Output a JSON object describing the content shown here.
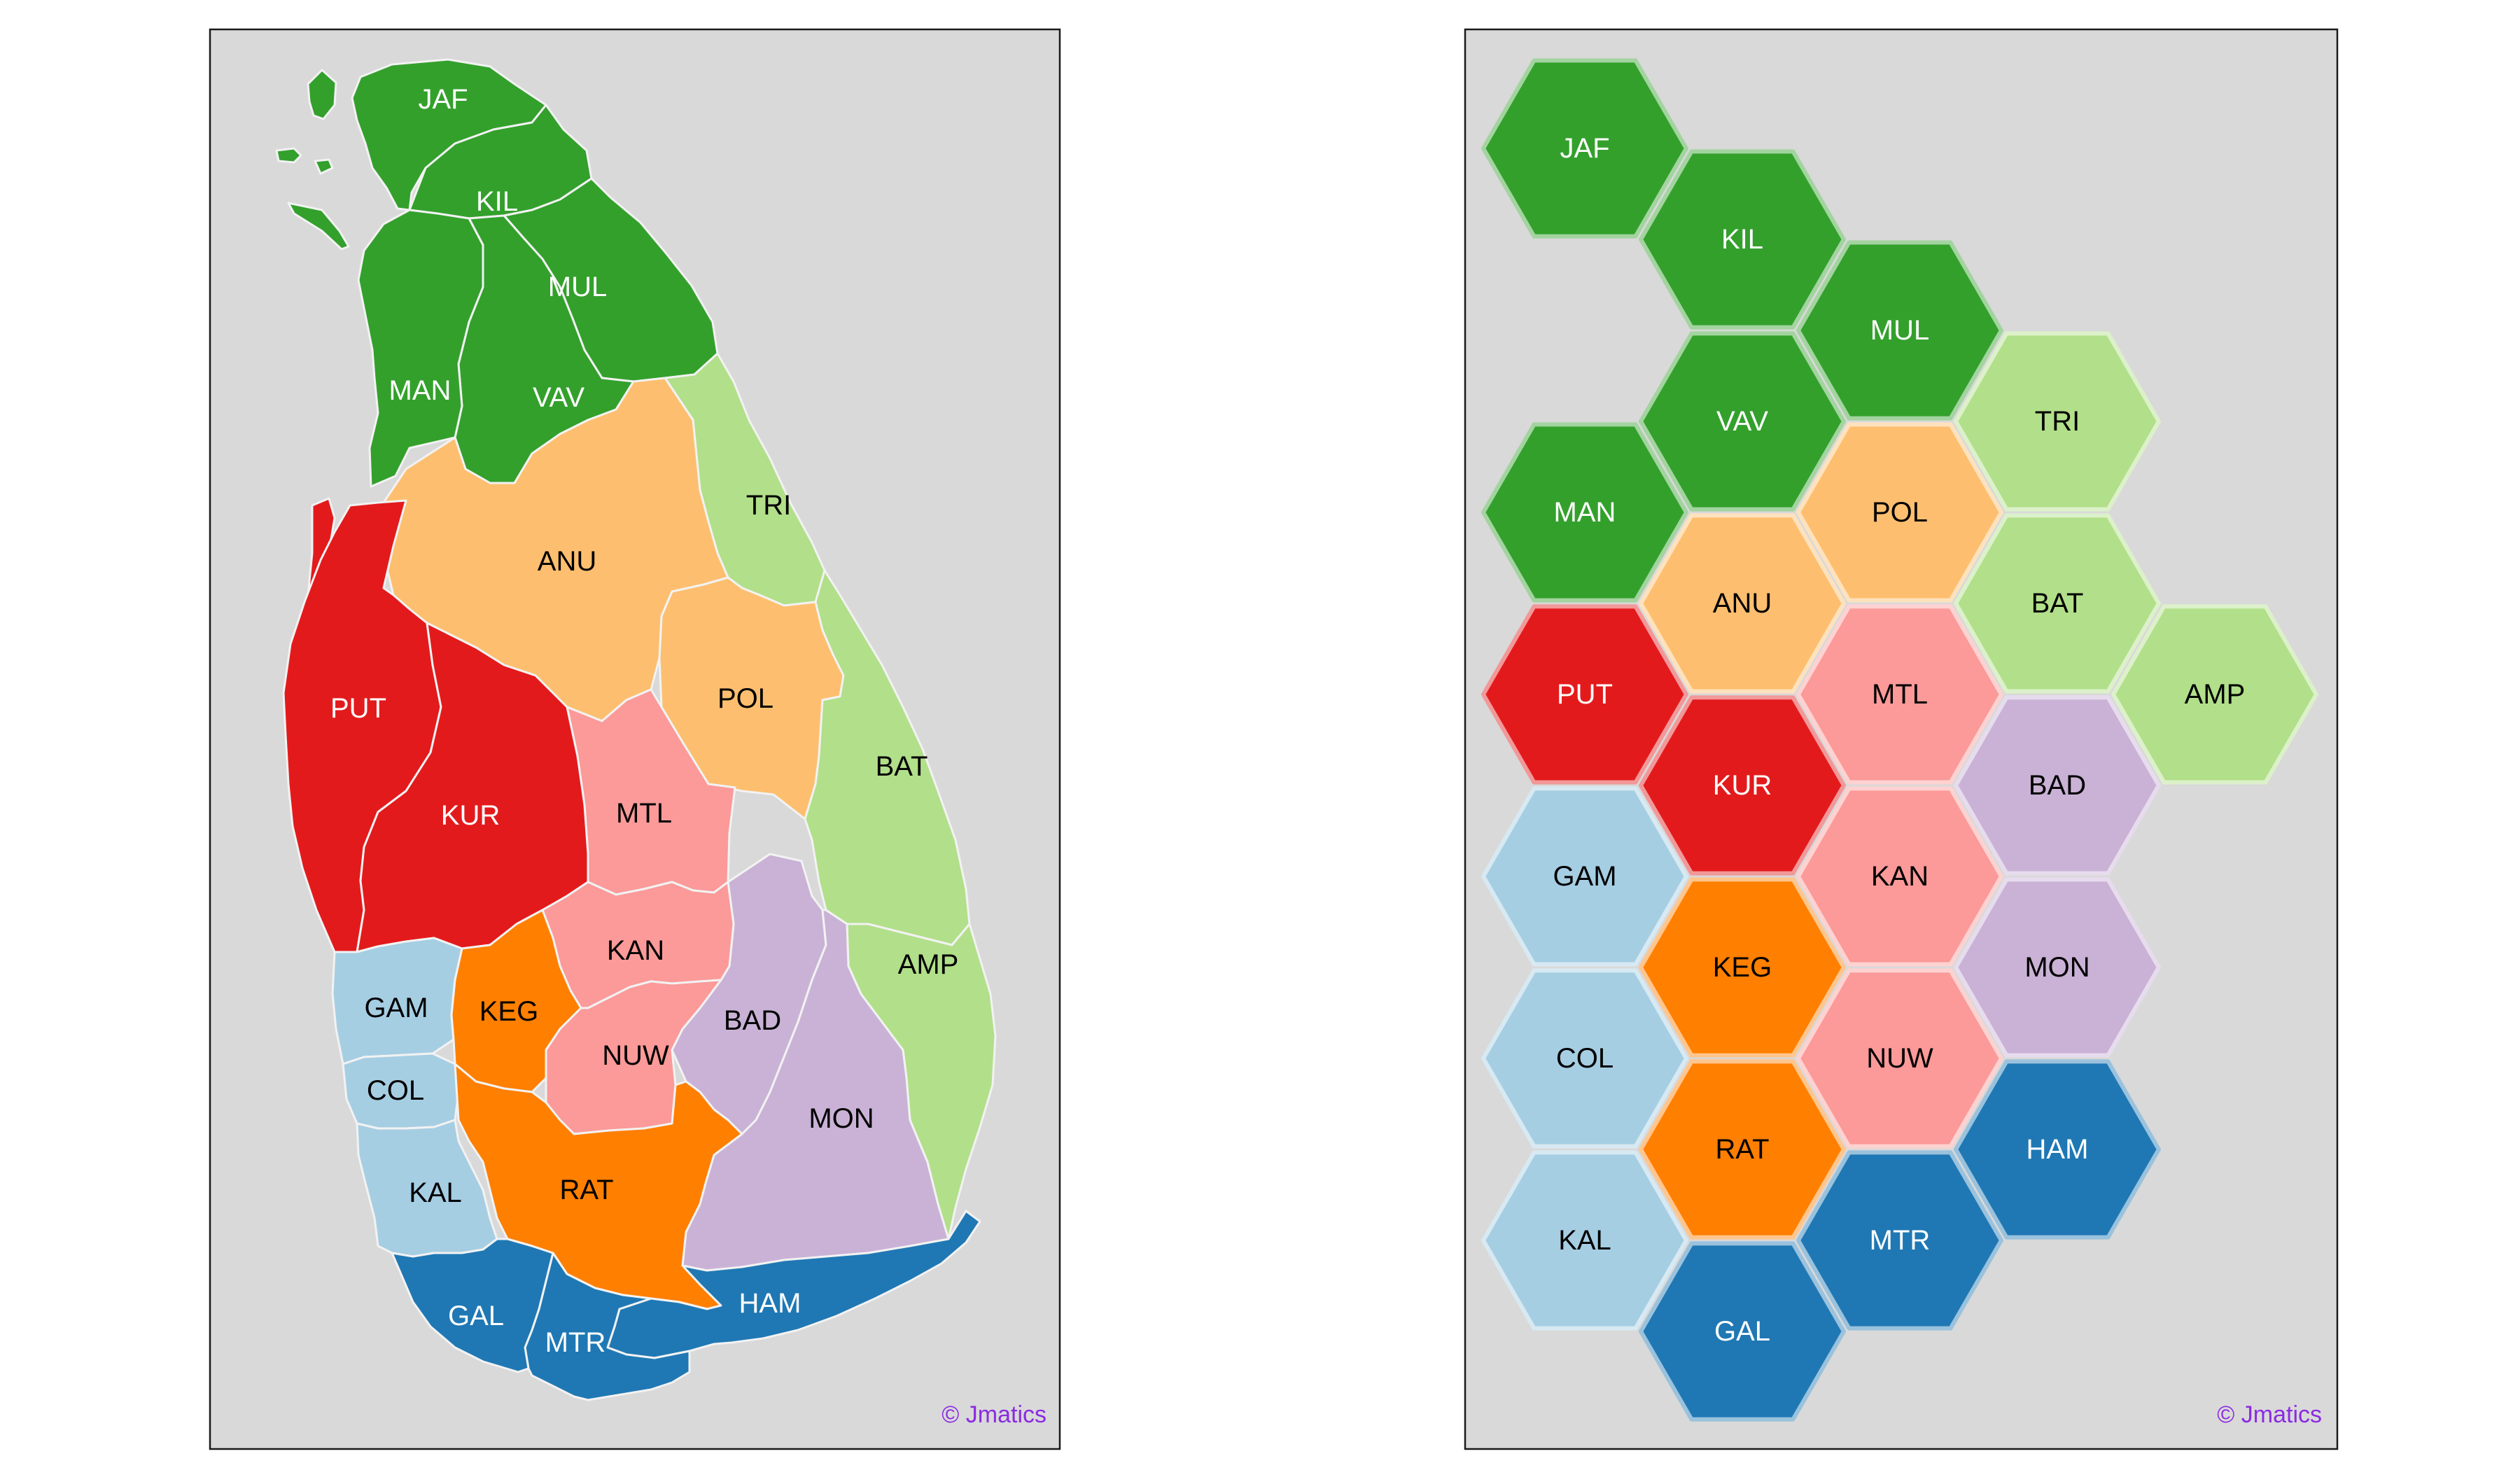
{
  "credit": "© Jmatics",
  "colors": {
    "dark_green": "#33a02c",
    "light_green": "#b2df8a",
    "light_orange": "#fdbf6f",
    "red": "#e31a1c",
    "pink": "#fb9a99",
    "light_blue": "#a6cee3",
    "orange": "#ff7f00",
    "lavender": "#cab2d6",
    "dark_blue": "#1f78b4",
    "credit_purple": "#8a2be2",
    "panel_bg": "#d9d9d9"
  },
  "districts": [
    {
      "code": "JAF",
      "color": "dark_green",
      "text": "white",
      "hex": [
        0,
        0
      ]
    },
    {
      "code": "KIL",
      "color": "dark_green",
      "text": "white",
      "hex": [
        1,
        1
      ]
    },
    {
      "code": "MUL",
      "color": "dark_green",
      "text": "white",
      "hex": [
        2,
        2
      ]
    },
    {
      "code": "VAV",
      "color": "dark_green",
      "text": "white",
      "hex": [
        1,
        3
      ]
    },
    {
      "code": "TRI",
      "color": "light_green",
      "text": "black",
      "hex": [
        3,
        3
      ]
    },
    {
      "code": "MAN",
      "color": "dark_green",
      "text": "white",
      "hex": [
        0,
        4
      ]
    },
    {
      "code": "POL",
      "color": "light_orange",
      "text": "black",
      "hex": [
        2,
        4
      ]
    },
    {
      "code": "ANU",
      "color": "light_orange",
      "text": "black",
      "hex": [
        1,
        5
      ]
    },
    {
      "code": "BAT",
      "color": "light_green",
      "text": "black",
      "hex": [
        3,
        5
      ]
    },
    {
      "code": "PUT",
      "color": "red",
      "text": "white",
      "hex": [
        0,
        6
      ]
    },
    {
      "code": "MTL",
      "color": "pink",
      "text": "black",
      "hex": [
        2,
        6
      ]
    },
    {
      "code": "AMP",
      "color": "light_green",
      "text": "black",
      "hex": [
        4,
        6
      ]
    },
    {
      "code": "KUR",
      "color": "red",
      "text": "white",
      "hex": [
        1,
        7
      ]
    },
    {
      "code": "BAD",
      "color": "lavender",
      "text": "black",
      "hex": [
        3,
        7
      ]
    },
    {
      "code": "GAM",
      "color": "light_blue",
      "text": "black",
      "hex": [
        0,
        8
      ]
    },
    {
      "code": "KAN",
      "color": "pink",
      "text": "black",
      "hex": [
        2,
        8
      ]
    },
    {
      "code": "KEG",
      "color": "orange",
      "text": "black",
      "hex": [
        1,
        9
      ]
    },
    {
      "code": "MON",
      "color": "lavender",
      "text": "black",
      "hex": [
        3,
        9
      ]
    },
    {
      "code": "COL",
      "color": "light_blue",
      "text": "black",
      "hex": [
        0,
        10
      ]
    },
    {
      "code": "NUW",
      "color": "pink",
      "text": "black",
      "hex": [
        2,
        10
      ]
    },
    {
      "code": "RAT",
      "color": "orange",
      "text": "black",
      "hex": [
        1,
        11
      ]
    },
    {
      "code": "HAM",
      "color": "dark_blue",
      "text": "white",
      "hex": [
        3,
        11
      ]
    },
    {
      "code": "KAL",
      "color": "light_blue",
      "text": "black",
      "hex": [
        0,
        12
      ]
    },
    {
      "code": "MTR",
      "color": "dark_blue",
      "text": "white",
      "hex": [
        2,
        12
      ]
    },
    {
      "code": "GAL",
      "color": "dark_blue",
      "text": "white",
      "hex": [
        1,
        13
      ]
    }
  ]
}
